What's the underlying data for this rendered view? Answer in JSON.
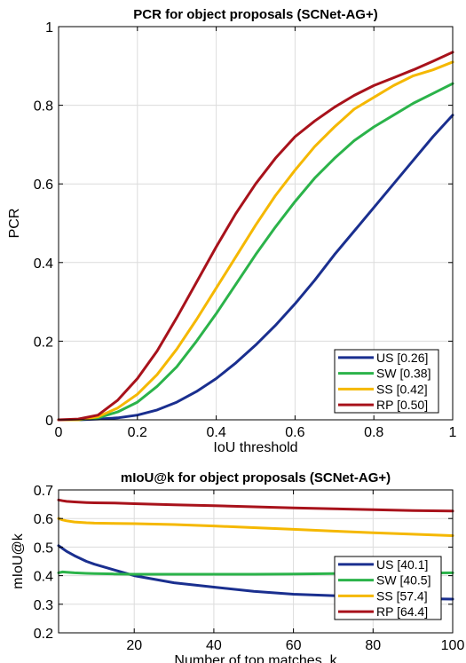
{
  "chart_data": [
    {
      "type": "line",
      "title": "PCR for object proposals (SCNet-AG+)",
      "xlabel": "IoU threshold",
      "ylabel": "PCR",
      "xlim": [
        0,
        1
      ],
      "ylim": [
        0,
        1
      ],
      "xticks": [
        0,
        0.2,
        0.4,
        0.6,
        0.8,
        1
      ],
      "xtick_labels": [
        "0",
        "0.2",
        "0.4",
        "0.6",
        "0.8",
        "1"
      ],
      "yticks": [
        0,
        0.2,
        0.4,
        0.6,
        0.8,
        1
      ],
      "ytick_labels": [
        "0",
        "0.2",
        "0.4",
        "0.6",
        "0.8",
        "1"
      ],
      "grid": true,
      "legend_position": "bottom-right",
      "x": [
        0,
        0.05,
        0.1,
        0.15,
        0.2,
        0.25,
        0.3,
        0.35,
        0.4,
        0.45,
        0.5,
        0.55,
        0.6,
        0.65,
        0.7,
        0.75,
        0.8,
        0.85,
        0.9,
        0.95,
        1.0
      ],
      "series": [
        {
          "name": "US [0.26]",
          "color": "#1a2f8f",
          "values": [
            0.0,
            0.0,
            0.002,
            0.005,
            0.012,
            0.025,
            0.045,
            0.072,
            0.105,
            0.145,
            0.19,
            0.24,
            0.295,
            0.355,
            0.42,
            0.48,
            0.54,
            0.6,
            0.66,
            0.72,
            0.775
          ]
        },
        {
          "name": "SW [0.38]",
          "color": "#2bb34a",
          "values": [
            0.0,
            0.0,
            0.005,
            0.02,
            0.045,
            0.085,
            0.135,
            0.2,
            0.27,
            0.345,
            0.42,
            0.49,
            0.555,
            0.615,
            0.665,
            0.71,
            0.745,
            0.775,
            0.805,
            0.83,
            0.855
          ]
        },
        {
          "name": "SS [0.42]",
          "color": "#f5b800",
          "values": [
            0.0,
            0.0,
            0.008,
            0.03,
            0.065,
            0.115,
            0.18,
            0.255,
            0.335,
            0.415,
            0.495,
            0.57,
            0.635,
            0.695,
            0.745,
            0.79,
            0.82,
            0.85,
            0.875,
            0.89,
            0.91
          ]
        },
        {
          "name": "RP [0.50]",
          "color": "#a8121b",
          "values": [
            0.0,
            0.002,
            0.012,
            0.05,
            0.105,
            0.175,
            0.26,
            0.35,
            0.44,
            0.525,
            0.6,
            0.665,
            0.72,
            0.76,
            0.795,
            0.825,
            0.85,
            0.87,
            0.89,
            0.912,
            0.935
          ]
        }
      ]
    },
    {
      "type": "line",
      "title": "mIoU@k for object proposals (SCNet-AG+)",
      "xlabel": "Number of top matches, k",
      "ylabel": "mIoU@k",
      "xlim": [
        1,
        100
      ],
      "ylim": [
        0.2,
        0.7
      ],
      "xticks": [
        20,
        40,
        60,
        80,
        100
      ],
      "xtick_labels": [
        "20",
        "40",
        "60",
        "80",
        "100"
      ],
      "yticks": [
        0.2,
        0.3,
        0.4,
        0.5,
        0.6,
        0.7
      ],
      "ytick_labels": [
        "0.2",
        "0.3",
        "0.4",
        "0.5",
        "0.6",
        "0.7"
      ],
      "grid": true,
      "legend_position": "bottom-right",
      "x": [
        1,
        2,
        3,
        5,
        8,
        10,
        15,
        20,
        30,
        40,
        50,
        60,
        70,
        80,
        90,
        100
      ],
      "series": [
        {
          "name": "US [40.1]",
          "color": "#1a2f8f",
          "values": [
            0.505,
            0.495,
            0.485,
            0.47,
            0.45,
            0.44,
            0.42,
            0.4,
            0.375,
            0.36,
            0.345,
            0.335,
            0.33,
            0.325,
            0.32,
            0.318
          ]
        },
        {
          "name": "SW [40.5]",
          "color": "#2bb34a",
          "values": [
            0.41,
            0.413,
            0.412,
            0.41,
            0.408,
            0.407,
            0.406,
            0.405,
            0.405,
            0.405,
            0.405,
            0.406,
            0.407,
            0.408,
            0.409,
            0.41
          ]
        },
        {
          "name": "SS [57.4]",
          "color": "#f5b800",
          "values": [
            0.6,
            0.595,
            0.592,
            0.588,
            0.585,
            0.584,
            0.583,
            0.582,
            0.579,
            0.574,
            0.568,
            0.562,
            0.556,
            0.55,
            0.545,
            0.54
          ]
        },
        {
          "name": "RP [64.4]",
          "color": "#a8121b",
          "values": [
            0.665,
            0.662,
            0.66,
            0.658,
            0.656,
            0.655,
            0.654,
            0.652,
            0.648,
            0.645,
            0.641,
            0.637,
            0.634,
            0.631,
            0.628,
            0.626
          ]
        }
      ]
    }
  ]
}
